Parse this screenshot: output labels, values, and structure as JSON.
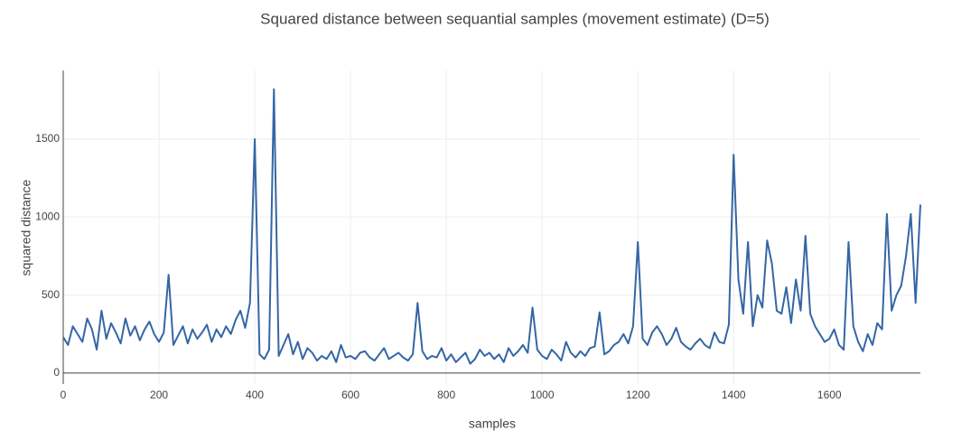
{
  "chart_data": {
    "type": "line",
    "title": "Squared distance between sequantial samples (movement estimate) (D=5)",
    "x_label": "samples",
    "y_label": "squared distance",
    "x": [
      0,
      10,
      20,
      30,
      40,
      50,
      60,
      70,
      80,
      90,
      100,
      110,
      120,
      130,
      140,
      150,
      160,
      170,
      180,
      190,
      200,
      210,
      220,
      230,
      240,
      250,
      260,
      270,
      280,
      290,
      300,
      310,
      320,
      330,
      340,
      350,
      360,
      370,
      380,
      390,
      400,
      410,
      420,
      430,
      440,
      450,
      460,
      470,
      480,
      490,
      500,
      510,
      520,
      530,
      540,
      550,
      560,
      570,
      580,
      590,
      600,
      610,
      620,
      630,
      640,
      650,
      660,
      670,
      680,
      690,
      700,
      710,
      720,
      730,
      740,
      750,
      760,
      770,
      780,
      790,
      800,
      810,
      820,
      830,
      840,
      850,
      860,
      870,
      880,
      890,
      900,
      910,
      920,
      930,
      940,
      950,
      960,
      970,
      980,
      990,
      1000,
      1010,
      1020,
      1030,
      1040,
      1050,
      1060,
      1070,
      1080,
      1090,
      1100,
      1110,
      1120,
      1130,
      1140,
      1150,
      1160,
      1170,
      1180,
      1190,
      1200,
      1210,
      1220,
      1230,
      1240,
      1250,
      1260,
      1270,
      1280,
      1290,
      1300,
      1310,
      1320,
      1330,
      1340,
      1350,
      1360,
      1370,
      1380,
      1390,
      1400,
      1410,
      1420,
      1430,
      1440,
      1450,
      1460,
      1470,
      1480,
      1490,
      1500,
      1510,
      1520,
      1530,
      1540,
      1550,
      1560,
      1570,
      1580,
      1590,
      1600,
      1610,
      1620,
      1630,
      1640,
      1650,
      1660,
      1670,
      1680,
      1690,
      1700,
      1710,
      1720,
      1730,
      1740,
      1750,
      1760,
      1770,
      1780,
      1790
    ],
    "series": [
      {
        "name": "squared distance",
        "color": "#3466a5",
        "values": [
          230,
          180,
          300,
          250,
          200,
          350,
          280,
          150,
          400,
          220,
          320,
          260,
          190,
          350,
          240,
          300,
          210,
          280,
          330,
          250,
          200,
          260,
          630,
          180,
          240,
          300,
          190,
          280,
          220,
          260,
          310,
          200,
          280,
          230,
          300,
          250,
          340,
          400,
          290,
          450,
          1500,
          120,
          90,
          150,
          1820,
          110,
          180,
          250,
          120,
          200,
          90,
          160,
          130,
          80,
          110,
          90,
          140,
          70,
          180,
          100,
          110,
          90,
          130,
          140,
          100,
          80,
          120,
          160,
          90,
          110,
          130,
          100,
          80,
          120,
          450,
          140,
          90,
          110,
          100,
          160,
          80,
          120,
          70,
          100,
          130,
          60,
          90,
          150,
          110,
          130,
          90,
          120,
          70,
          160,
          110,
          140,
          180,
          130,
          420,
          150,
          110,
          90,
          150,
          120,
          80,
          200,
          130,
          100,
          140,
          110,
          160,
          170,
          390,
          120,
          140,
          180,
          200,
          250,
          190,
          300,
          840,
          220,
          180,
          260,
          300,
          250,
          180,
          220,
          290,
          200,
          170,
          150,
          190,
          220,
          180,
          160,
          260,
          200,
          190,
          310,
          1400,
          600,
          380,
          840,
          300,
          500,
          420,
          850,
          700,
          400,
          380,
          550,
          320,
          600,
          400,
          880,
          380,
          300,
          250,
          200,
          220,
          280,
          180,
          150,
          840,
          300,
          200,
          140,
          250,
          180,
          320,
          280,
          1020,
          400,
          500,
          560,
          750,
          1020,
          450,
          1080
        ]
      }
    ],
    "xlim": [
      0,
      1790
    ],
    "ylim": [
      -70,
      1940
    ],
    "xticks": [
      0,
      200,
      400,
      600,
      800,
      1000,
      1200,
      1400,
      1600
    ],
    "yticks": [
      0,
      500,
      1000,
      1500
    ],
    "grid": true
  }
}
